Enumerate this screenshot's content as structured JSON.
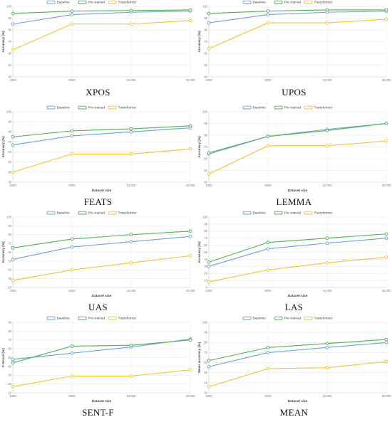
{
  "colors": {
    "Baseline": "#6a9fd8",
    "Pre-trained": "#4caf50",
    "Transformer": "#f2c230"
  },
  "chart_data": [
    {
      "type": "line",
      "title": "XPOS",
      "xlabel": "",
      "ylabel": "Accuracy (%)",
      "categories": [
        "1000",
        "5000",
        "10,000",
        "20,000"
      ],
      "ylim": [
        40,
        100
      ],
      "yticks": [
        40,
        50,
        60,
        70,
        80,
        90,
        100
      ],
      "grid": true,
      "legend": "top",
      "series": [
        {
          "name": "Baseline",
          "values": [
            85,
            93,
            95,
            96
          ]
        },
        {
          "name": "Pre-trained",
          "values": [
            94,
            96,
            96.5,
            97
          ]
        },
        {
          "name": "Transformer",
          "values": [
            63,
            85,
            85,
            88
          ]
        }
      ]
    },
    {
      "type": "line",
      "title": "UPOS",
      "xlabel": "",
      "ylabel": "Accuracy (%)",
      "categories": [
        "1000",
        "5000",
        "10,000",
        "20,000"
      ],
      "ylim": [
        40,
        100
      ],
      "yticks": [
        40,
        50,
        60,
        70,
        80,
        90,
        100
      ],
      "grid": true,
      "legend": "top",
      "series": [
        {
          "name": "Baseline",
          "values": [
            86,
            93,
            95,
            96
          ]
        },
        {
          "name": "Pre-trained",
          "values": [
            94,
            96,
            97,
            97
          ]
        },
        {
          "name": "Transformer",
          "values": [
            64,
            86,
            86,
            89
          ]
        }
      ]
    },
    {
      "type": "line",
      "title": "FEATS",
      "xlabel": "Dataset size",
      "ylabel": "Accuracy (%)",
      "categories": [
        "1000",
        "5000",
        "10,000",
        "20,000"
      ],
      "ylim": [
        30,
        100
      ],
      "yticks": [
        30,
        40,
        50,
        60,
        70,
        80,
        90,
        100
      ],
      "grid": true,
      "legend": "top",
      "series": [
        {
          "name": "Baseline",
          "values": [
            67,
            76,
            80,
            84
          ]
        },
        {
          "name": "Pre-trained",
          "values": [
            75,
            81,
            83,
            86
          ]
        },
        {
          "name": "Transformer",
          "values": [
            40,
            58,
            58,
            63
          ]
        }
      ]
    },
    {
      "type": "line",
      "title": "LEMMA",
      "xlabel": "Dataset size",
      "ylabel": "Accuracy (%)",
      "categories": [
        "1000",
        "5000",
        "10,000",
        "20,000"
      ],
      "ylim": [
        40,
        100
      ],
      "yticks": [
        40,
        50,
        60,
        70,
        80,
        90,
        100
      ],
      "grid": true,
      "legend": "top",
      "series": [
        {
          "name": "Baseline",
          "values": [
            64,
            79,
            85,
            90
          ]
        },
        {
          "name": "Pre-trained",
          "values": [
            65,
            79,
            84,
            90
          ]
        },
        {
          "name": "Transformer",
          "values": [
            47,
            71,
            71,
            75
          ]
        }
      ]
    },
    {
      "type": "line",
      "title": "UAS",
      "xlabel": "Dataset size",
      "ylabel": "Accuracy (%)",
      "categories": [
        "1000",
        "5000",
        "10,000",
        "20,000"
      ],
      "ylim": [
        20,
        100
      ],
      "yticks": [
        20,
        30,
        40,
        50,
        60,
        70,
        80,
        90,
        100
      ],
      "grid": true,
      "legend": "top",
      "series": [
        {
          "name": "Baseline",
          "values": [
            52,
            66,
            72,
            78
          ]
        },
        {
          "name": "Pre-trained",
          "values": [
            65,
            75,
            80,
            84
          ]
        },
        {
          "name": "Transformer",
          "values": [
            28,
            40,
            48,
            56
          ]
        }
      ]
    },
    {
      "type": "line",
      "title": "LAS",
      "xlabel": "Dataset size",
      "ylabel": "Accuracy (%)",
      "categories": [
        "1000",
        "5000",
        "10,000",
        "20,000"
      ],
      "ylim": [
        0,
        100
      ],
      "yticks": [
        0,
        10,
        20,
        30,
        40,
        50,
        60,
        70,
        80,
        90,
        100
      ],
      "grid": true,
      "legend": "top",
      "series": [
        {
          "name": "Baseline",
          "values": [
            30,
            55,
            63,
            70
          ]
        },
        {
          "name": "Pre-trained",
          "values": [
            36,
            64,
            70,
            76
          ]
        },
        {
          "name": "Transformer",
          "values": [
            8,
            25,
            35,
            43
          ]
        }
      ]
    },
    {
      "type": "line",
      "title": "SENT-F",
      "xlabel": "Dataset size",
      "ylabel": "F-Score (%)",
      "categories": [
        "1000",
        "5000",
        "10,000",
        "20,000"
      ],
      "ylim": [
        10,
        90
      ],
      "yticks": [
        10,
        20,
        30,
        40,
        50,
        60,
        70,
        80,
        90
      ],
      "grid": true,
      "legend": "top",
      "series": [
        {
          "name": "Baseline",
          "values": [
            48,
            55,
            62,
            71
          ]
        },
        {
          "name": "Pre-trained",
          "values": [
            44,
            63,
            64,
            70
          ]
        },
        {
          "name": "Transformer",
          "values": [
            17,
            29,
            29,
            36
          ]
        }
      ]
    },
    {
      "type": "line",
      "title": "MEAN",
      "xlabel": "Dataset size",
      "ylabel": "Mean accuracy (%)",
      "categories": [
        "1000",
        "5000",
        "10,000",
        "20,000"
      ],
      "ylim": [
        30,
        100
      ],
      "yticks": [
        30,
        40,
        50,
        60,
        70,
        80,
        90,
        100
      ],
      "grid": true,
      "legend": "top",
      "series": [
        {
          "name": "Baseline",
          "values": [
            56,
            70,
            75,
            80
          ]
        },
        {
          "name": "Pre-trained",
          "values": [
            62,
            75,
            79,
            83
          ]
        },
        {
          "name": "Transformer",
          "values": [
            36,
            54,
            55,
            61
          ]
        }
      ]
    }
  ]
}
